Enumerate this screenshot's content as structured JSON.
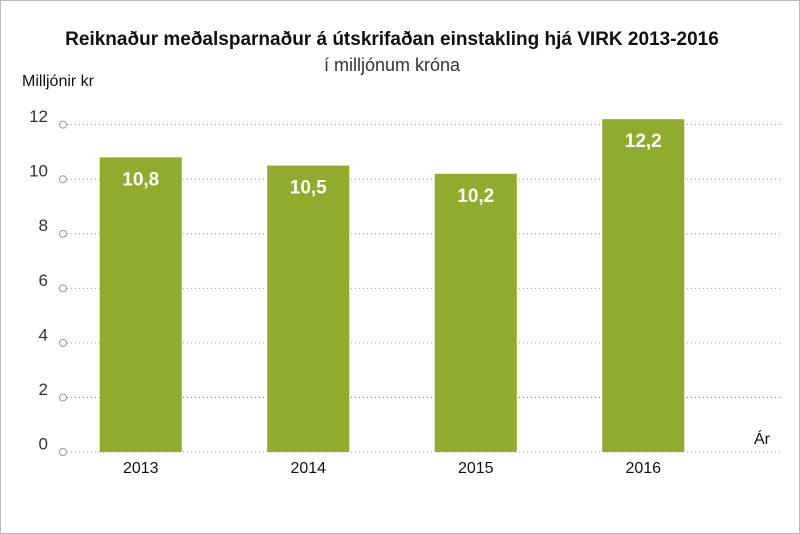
{
  "chart_data": {
    "type": "bar",
    "title": "Reiknaður meðalsparnaður á útskrifaðan einstakling hjá VIRK 2013-2016",
    "subtitle": "í milljónum króna",
    "y_label": "Milljónir kr",
    "x_label": "Ár",
    "categories": [
      "2013",
      "2014",
      "2015",
      "2016"
    ],
    "values": [
      10.8,
      10.5,
      10.2,
      12.2
    ],
    "value_labels": [
      "10,8",
      "10,5",
      "10,2",
      "12,2"
    ],
    "color": "#8fac2e",
    "ylim": [
      0,
      12.5
    ],
    "yticks": [
      0,
      2,
      4,
      6,
      8,
      10,
      12
    ],
    "grid": true
  }
}
